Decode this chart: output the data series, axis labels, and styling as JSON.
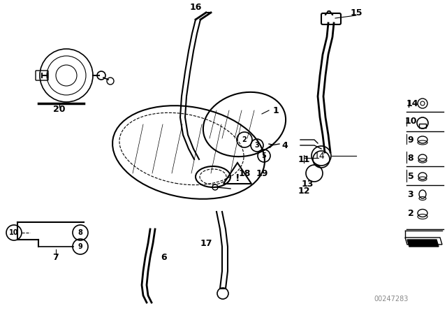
{
  "title": "",
  "background_color": "#ffffff",
  "line_color": "#000000",
  "part_numbers": [
    1,
    2,
    3,
    4,
    5,
    6,
    7,
    8,
    9,
    10,
    11,
    12,
    13,
    14,
    15,
    16,
    17,
    18,
    19,
    20
  ],
  "watermark": "00247283",
  "fig_width": 6.4,
  "fig_height": 4.48,
  "dpi": 100,
  "label_fontsize": 9,
  "font_family": "sans-serif"
}
